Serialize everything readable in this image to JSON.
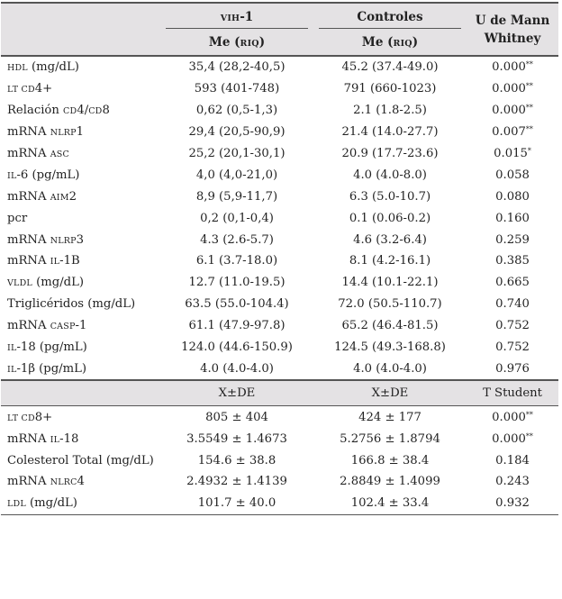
{
  "header": {
    "group1": [
      {
        "t": "VIH",
        "sc": true
      },
      {
        "t": "-1"
      }
    ],
    "group2": "Controles",
    "test1": "U de Mann Whitney",
    "stat_label": [
      {
        "t": "Me ("
      },
      {
        "t": "RIQ",
        "sc": true
      },
      {
        "t": ")"
      }
    ]
  },
  "section1_rows": [
    {
      "label": [
        {
          "t": "HDL",
          "sc": true
        },
        {
          "t": " (mg/dL)"
        }
      ],
      "vih": "35,4 (28,2-40,5)",
      "ctrl": "45.2 (37.4-49.0)",
      "p": "0.000",
      "sig": "**"
    },
    {
      "label": [
        {
          "t": "LT CD",
          "sc": true
        },
        {
          "t": "4+"
        }
      ],
      "vih": "593 (401-748)",
      "ctrl": "791 (660-1023)",
      "p": "0.000",
      "sig": "**"
    },
    {
      "label": [
        {
          "t": "Relación "
        },
        {
          "t": "CD",
          "sc": true
        },
        {
          "t": "4/"
        },
        {
          "t": "CD",
          "sc": true
        },
        {
          "t": "8"
        }
      ],
      "vih": "0,62 (0,5-1,3)",
      "ctrl": "2.1 (1.8-2.5)",
      "p": "0.000",
      "sig": "**"
    },
    {
      "label": [
        {
          "t": "mRNA "
        },
        {
          "t": "NLRP",
          "sc": true
        },
        {
          "t": "1"
        }
      ],
      "vih": "29,4 (20,5-90,9)",
      "ctrl": "21.4 (14.0-27.7)",
      "p": "0.007",
      "sig": "**"
    },
    {
      "label": [
        {
          "t": "mRNA "
        },
        {
          "t": "ASC",
          "sc": true
        }
      ],
      "vih": "25,2 (20,1-30,1)",
      "ctrl": "20.9 (17.7-23.6)",
      "p": "0.015",
      "sig": "*"
    },
    {
      "label": [
        {
          "t": "IL",
          "sc": true
        },
        {
          "t": "-6 (pg/mL)"
        }
      ],
      "vih": "4,0 (4,0-21,0)",
      "ctrl": "4.0 (4.0-8.0)",
      "p": "0.058",
      "sig": ""
    },
    {
      "label": [
        {
          "t": "mRNA "
        },
        {
          "t": "AIM",
          "sc": true
        },
        {
          "t": "2"
        }
      ],
      "vih": "8,9 (5,9-11,7)",
      "ctrl": "6.3 (5.0-10.7)",
      "p": "0.080",
      "sig": ""
    },
    {
      "label": [
        {
          "t": "pcr"
        }
      ],
      "vih": "0,2 (0,1-0,4)",
      "ctrl": "0.1 (0.06-0.2)",
      "p": "0.160",
      "sig": ""
    },
    {
      "label": [
        {
          "t": "mRNA "
        },
        {
          "t": "NLRP",
          "sc": true
        },
        {
          "t": "3"
        }
      ],
      "vih": "4.3 (2.6-5.7)",
      "ctrl": "4.6 (3.2-6.4)",
      "p": "0.259",
      "sig": ""
    },
    {
      "label": [
        {
          "t": "mRNA "
        },
        {
          "t": "IL",
          "sc": true
        },
        {
          "t": "-1B"
        }
      ],
      "vih": "6.1 (3.7-18.0)",
      "ctrl": "8.1 (4.2-16.1)",
      "p": "0.385",
      "sig": ""
    },
    {
      "label": [
        {
          "t": "VLDL",
          "sc": true
        },
        {
          "t": " (mg/dL)"
        }
      ],
      "vih": "12.7 (11.0-19.5)",
      "ctrl": "14.4 (10.1-22.1)",
      "p": "0.665",
      "sig": ""
    },
    {
      "label": [
        {
          "t": "Triglicéridos (mg/dL)"
        }
      ],
      "vih": "63.5 (55.0-104.4)",
      "ctrl": "72.0 (50.5-110.7)",
      "p": "0.740",
      "sig": ""
    },
    {
      "label": [
        {
          "t": "mRNA "
        },
        {
          "t": "CASP",
          "sc": true
        },
        {
          "t": "-1"
        }
      ],
      "vih": "61.1 (47.9-97.8)",
      "ctrl": "65.2 (46.4-81.5)",
      "p": "0.752",
      "sig": ""
    },
    {
      "label": [
        {
          "t": "IL",
          "sc": true
        },
        {
          "t": "-18 (pg/mL)"
        }
      ],
      "vih": "124.0 (44.6-150.9)",
      "ctrl": "124.5 (49.3-168.8)",
      "p": "0.752",
      "sig": ""
    },
    {
      "label": [
        {
          "t": "IL",
          "sc": true
        },
        {
          "t": "-1β (pg/mL)"
        }
      ],
      "vih": "4.0 (4.0-4.0)",
      "ctrl": "4.0 (4.0-4.0)",
      "p": "0.976",
      "sig": ""
    }
  ],
  "section2_header": {
    "vih": "X±DE",
    "ctrl": "X±DE",
    "test": "T Student"
  },
  "section2_rows": [
    {
      "label": [
        {
          "t": "LT CD",
          "sc": true
        },
        {
          "t": "8+"
        }
      ],
      "vih": "805 ± 404",
      "ctrl": "424 ± 177",
      "p": "0.000",
      "sig": "**"
    },
    {
      "label": [
        {
          "t": "mRNA "
        },
        {
          "t": "IL",
          "sc": true
        },
        {
          "t": "-18"
        }
      ],
      "vih": "3.5549 ± 1.4673",
      "ctrl": "5.2756 ± 1.8794",
      "p": "0.000",
      "sig": "**"
    },
    {
      "label": [
        {
          "t": "Colesterol Total (mg/dL)"
        }
      ],
      "vih": "154.6 ± 38.8",
      "ctrl": "166.8 ± 38.4",
      "p": "0.184",
      "sig": ""
    },
    {
      "label": [
        {
          "t": "mRNA "
        },
        {
          "t": "NLRC",
          "sc": true
        },
        {
          "t": "4"
        }
      ],
      "vih": "2.4932 ± 1.4139",
      "ctrl": "2.8849 ± 1.4099",
      "p": "0.243",
      "sig": ""
    },
    {
      "label": [
        {
          "t": "LDL",
          "sc": true
        },
        {
          "t": " (mg/dL)"
        }
      ],
      "vih": "101.7 ± 40.0",
      "ctrl": "102.4 ± 33.4",
      "p": "0.932",
      "sig": ""
    }
  ]
}
